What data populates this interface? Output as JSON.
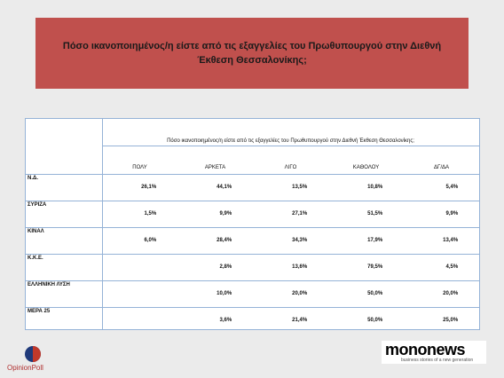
{
  "header": {
    "title": "Πόσο ικανοποιημένος/η είστε από τις εξαγγελίες του Πρωθυπουργού στην Διεθνή Έκθεση Θεσσαλονίκης;"
  },
  "table": {
    "caption": "Πόσο ικανοποιημένος/η είστε από τις εξαγγελίες του Πρωθυπουργού στην Διεθνή Έκθεση Θεσσαλονίκης;",
    "columns": [
      "ΠΟΛΥ",
      "ΑΡΚΕΤΑ",
      "ΛΙΓΟ",
      "ΚΑΘΟΛΟΥ",
      "ΔΓ/ΔΑ"
    ],
    "rows": [
      {
        "label": "Ν.Δ.",
        "cells": [
          "26,1%",
          "44,1%",
          "13,5%",
          "10,8%",
          "5,4%"
        ]
      },
      {
        "label": "ΣΥΡΙΖΑ",
        "cells": [
          "1,5%",
          "9,9%",
          "27,1%",
          "51,5%",
          "9,9%"
        ]
      },
      {
        "label": "ΚΙΝΑΛ",
        "cells": [
          "6,0%",
          "28,4%",
          "34,3%",
          "17,9%",
          "13,4%"
        ]
      },
      {
        "label": "Κ.Κ.Ε.",
        "cells": [
          null,
          "2,8%",
          "13,6%",
          "79,5%",
          "4,5%"
        ]
      },
      {
        "label": "ΕΛΛΗΝΙΚΗ ΛΥΣΗ",
        "cells": [
          null,
          "10,0%",
          "20,0%",
          "50,0%",
          "20,0%"
        ]
      },
      {
        "label": "ΜΕΡΑ 25",
        "cells": [
          null,
          "3,6%",
          "21,4%",
          "50,0%",
          "25,0%"
        ]
      }
    ]
  },
  "footer": {
    "left_logo": "OpinionPoll",
    "right_logo": "mononews",
    "right_tagline": "business stories of a new generation"
  }
}
